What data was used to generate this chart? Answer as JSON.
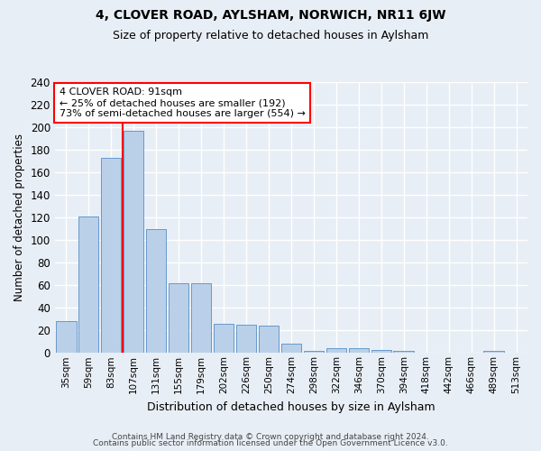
{
  "title": "4, CLOVER ROAD, AYLSHAM, NORWICH, NR11 6JW",
  "subtitle": "Size of property relative to detached houses in Aylsham",
  "xlabel": "Distribution of detached houses by size in Aylsham",
  "ylabel": "Number of detached properties",
  "categories": [
    "35sqm",
    "59sqm",
    "83sqm",
    "107sqm",
    "131sqm",
    "155sqm",
    "179sqm",
    "202sqm",
    "226sqm",
    "250sqm",
    "274sqm",
    "298sqm",
    "322sqm",
    "346sqm",
    "370sqm",
    "394sqm",
    "418sqm",
    "442sqm",
    "466sqm",
    "489sqm",
    "513sqm"
  ],
  "values": [
    28,
    121,
    173,
    197,
    110,
    62,
    62,
    26,
    25,
    24,
    8,
    2,
    4,
    4,
    3,
    2,
    0,
    0,
    0,
    2,
    0
  ],
  "bar_color": "#bad0e8",
  "bar_edge_color": "#6699cc",
  "highlight_line_color": "red",
  "annotation_text": "4 CLOVER ROAD: 91sqm\n← 25% of detached houses are smaller (192)\n73% of semi-detached houses are larger (554) →",
  "annotation_box_color": "white",
  "annotation_box_edge": "red",
  "ylim": [
    0,
    240
  ],
  "yticks": [
    0,
    20,
    40,
    60,
    80,
    100,
    120,
    140,
    160,
    180,
    200,
    220,
    240
  ],
  "footer1": "Contains HM Land Registry data © Crown copyright and database right 2024.",
  "footer2": "Contains public sector information licensed under the Open Government Licence v3.0.",
  "bg_color": "#e8eef5",
  "plot_bg_color": "#e8eef5",
  "grid_color": "#ffffff",
  "title_fontsize": 10,
  "subtitle_fontsize": 9
}
